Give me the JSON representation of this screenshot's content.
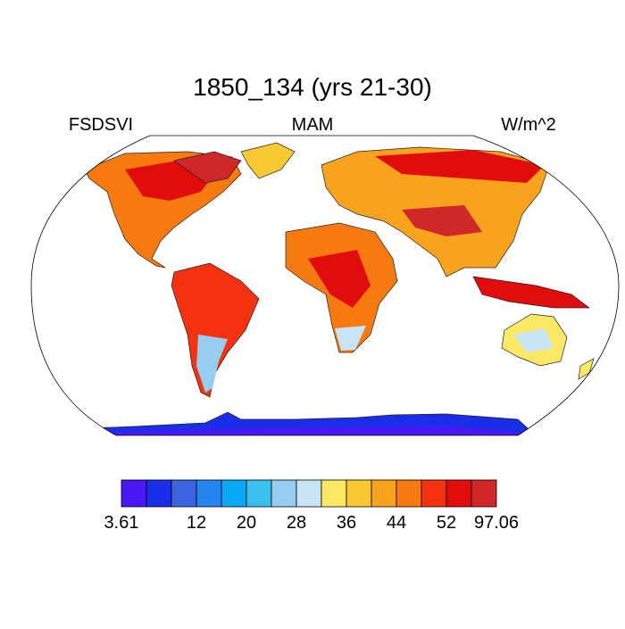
{
  "header": {
    "title": "1850_134 (yrs 21-30)",
    "left": "FSDSVI",
    "center": "MAM",
    "right": "W/m^2"
  },
  "colorbar": {
    "colors": [
      "#4a18f5",
      "#1a2de8",
      "#3c64e0",
      "#2585f0",
      "#0aa8f5",
      "#3cc0f0",
      "#96cdf0",
      "#c8e4f5",
      "#fbe864",
      "#fac832",
      "#f8a21e",
      "#f77a10",
      "#f5320f",
      "#e10c0c",
      "#d02828"
    ],
    "labels": [
      "3.61",
      "12",
      "20",
      "28",
      "36",
      "44",
      "52",
      "97.06"
    ]
  }
}
